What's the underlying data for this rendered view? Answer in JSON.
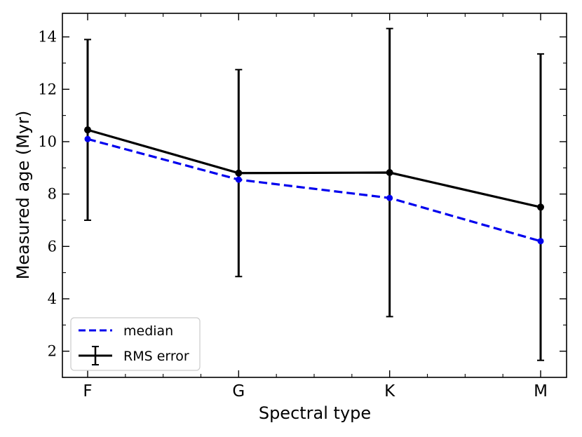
{
  "chart_data": {
    "type": "line",
    "title": "",
    "xlabel": "Spectral type",
    "ylabel": "Measured age (Myr)",
    "categories": [
      "F",
      "G",
      "K",
      "M"
    ],
    "ylim": [
      1.0,
      14.9
    ],
    "yticks": [
      2,
      4,
      6,
      8,
      10,
      12,
      14
    ],
    "ytick_labels": [
      "2",
      "4",
      "6",
      "8",
      "10",
      "12",
      "14"
    ],
    "series": [
      {
        "name": "median",
        "style": "dashed",
        "color": "#0000ee",
        "values": [
          10.1,
          8.55,
          7.85,
          6.2
        ]
      },
      {
        "name": "RMS error",
        "style": "solid-errorbar",
        "color": "#000000",
        "values": [
          10.45,
          8.8,
          8.82,
          7.5
        ],
        "errors": [
          3.45,
          3.95,
          5.5,
          5.85
        ]
      }
    ],
    "legend": {
      "position": "lower-left",
      "entries": [
        "median",
        "RMS error"
      ]
    }
  }
}
